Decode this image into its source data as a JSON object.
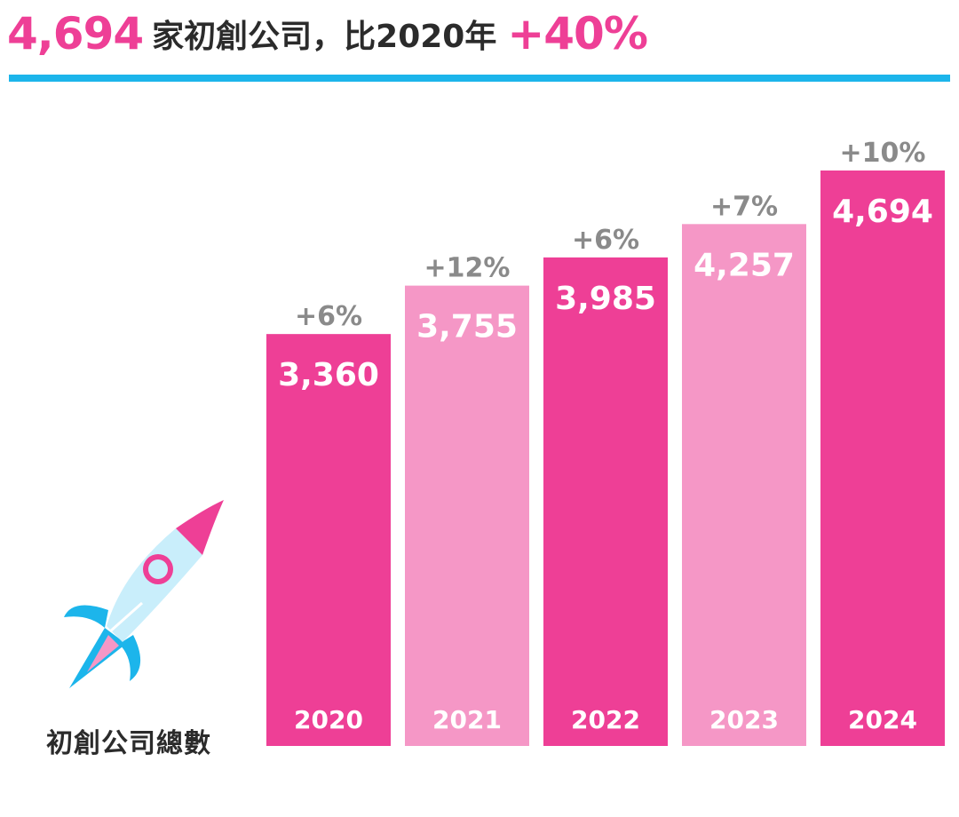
{
  "headline": {
    "total": "4,694",
    "middle": "家初創公司，比2020年",
    "growth": "+40%"
  },
  "caption": "初創公司總數",
  "colors": {
    "accent_pink": "#EE3F96",
    "light_pink": "#F597C6",
    "rule_blue": "#1CB5EB",
    "growth_gray": "#8a8a8a"
  },
  "chart_data": {
    "type": "bar",
    "categories": [
      "2020",
      "2021",
      "2022",
      "2023",
      "2024"
    ],
    "values": [
      3360,
      3755,
      3985,
      4257,
      4694
    ],
    "value_labels": [
      "3,360",
      "3,755",
      "3,985",
      "4,257",
      "4,694"
    ],
    "growth_labels": [
      "+6%",
      "+12%",
      "+6%",
      "+7%",
      "+10%"
    ],
    "bar_colors": [
      "#EE3F96",
      "#F597C6",
      "#EE3F96",
      "#F597C6",
      "#EE3F96"
    ],
    "title": "",
    "xlabel": "",
    "ylabel": "",
    "grid": false
  }
}
